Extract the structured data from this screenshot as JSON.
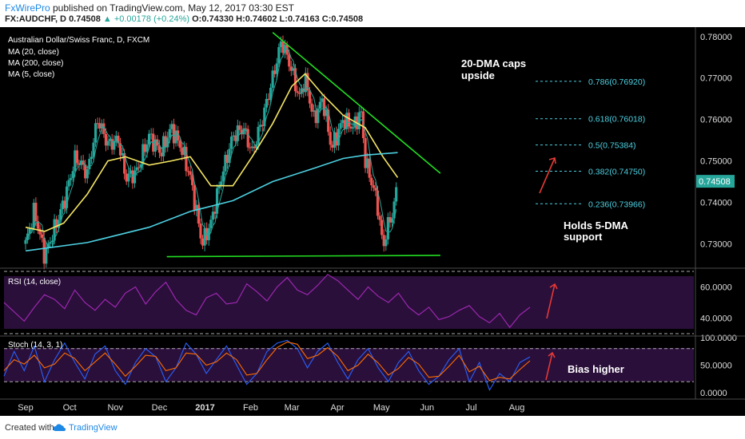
{
  "header": {
    "brand": "FxWirePro",
    "published": " published on TradingView.com, May 12, 2017 03:30 EST",
    "symbol": "FX:AUDCHF, D",
    "last": "0.74508",
    "change": "▲ +0.00178 (+0.24%)",
    "ohlc": "O:0.74330 H:0.74602 L:0.74163 C:0.74508"
  },
  "legend": {
    "title": "Australian Dollar/Swiss Franc, D, FXCM",
    "ma20": "MA (20, close)",
    "ma200": "MA (200, close)",
    "ma5": "MA (5, close)"
  },
  "annotations": {
    "caps1": "20-DMA caps",
    "caps2": "upside",
    "holds1": "Holds 5-DMA",
    "holds2": "support",
    "bias": "Bias higher"
  },
  "footer": {
    "created": "Created with",
    "tradingview": "TradingView"
  },
  "colors": {
    "price_up": "#26a69a",
    "price_down": "#ef5350",
    "ma20": "#f5e663",
    "ma200": "#4dd0e1",
    "trendline": "#22dd22",
    "fib": "#4dd0e1",
    "arrow": "#e53935",
    "rsi": "#9c27b0",
    "stoch_k": "#2962ff",
    "stoch_d": "#ff6d00",
    "osc_band": "#3a1a4d"
  },
  "chart_data": [
    {
      "type": "candlestick",
      "title": "Australian Dollar/Swiss Franc, D, FXCM",
      "ylim": [
        0.7245,
        0.7815
      ],
      "y_ticks": [
        "0.78000",
        "0.77000",
        "0.76000",
        "0.75000",
        "0.74000",
        "0.73000"
      ],
      "x_ticks": [
        "Sep",
        "Oct",
        "Nov",
        "Dec",
        "2017",
        "Feb",
        "Mar",
        "Apr",
        "May",
        "Jun",
        "Jul",
        "Aug"
      ],
      "last_price": "0.74508",
      "price_path": [
        [
          "2016-09-01",
          0.73
        ],
        [
          "2016-09-07",
          0.738
        ],
        [
          "2016-09-14",
          0.727
        ],
        [
          "2016-09-20",
          0.733
        ],
        [
          "2016-09-27",
          0.74
        ],
        [
          "2016-10-05",
          0.751
        ],
        [
          "2016-10-13",
          0.747
        ],
        [
          "2016-10-20",
          0.76
        ],
        [
          "2016-10-27",
          0.754
        ],
        [
          "2016-11-03",
          0.755
        ],
        [
          "2016-11-08",
          0.746
        ],
        [
          "2016-11-15",
          0.747
        ],
        [
          "2016-11-24",
          0.756
        ],
        [
          "2016-12-02",
          0.752
        ],
        [
          "2016-12-09",
          0.758
        ],
        [
          "2016-12-16",
          0.753
        ],
        [
          "2016-12-22",
          0.746
        ],
        [
          "2016-12-30",
          0.73
        ],
        [
          "2017-01-05",
          0.735
        ],
        [
          "2017-01-12",
          0.746
        ],
        [
          "2017-01-20",
          0.756
        ],
        [
          "2017-01-27",
          0.758
        ],
        [
          "2017-02-02",
          0.752
        ],
        [
          "2017-02-09",
          0.76
        ],
        [
          "2017-02-16",
          0.77
        ],
        [
          "2017-02-22",
          0.779
        ],
        [
          "2017-02-28",
          0.773
        ],
        [
          "2017-03-06",
          0.765
        ],
        [
          "2017-03-10",
          0.77
        ],
        [
          "2017-03-16",
          0.76
        ],
        [
          "2017-03-22",
          0.765
        ],
        [
          "2017-03-28",
          0.753
        ],
        [
          "2017-04-05",
          0.76
        ],
        [
          "2017-04-12",
          0.758
        ],
        [
          "2017-04-17",
          0.762
        ],
        [
          "2017-04-20",
          0.75
        ],
        [
          "2017-04-25",
          0.744
        ],
        [
          "2017-04-28",
          0.74
        ],
        [
          "2017-05-02",
          0.729
        ],
        [
          "2017-05-05",
          0.734
        ],
        [
          "2017-05-09",
          0.738
        ],
        [
          "2017-05-12",
          0.745
        ]
      ],
      "series": [
        {
          "name": "MA (20, close)",
          "points": [
            [
              "2016-09-01",
              0.734
            ],
            [
              "2016-09-14",
              0.733
            ],
            [
              "2016-09-27",
              0.735
            ],
            [
              "2016-10-13",
              0.742
            ],
            [
              "2016-10-27",
              0.75
            ],
            [
              "2016-11-08",
              0.751
            ],
            [
              "2016-11-24",
              0.749
            ],
            [
              "2016-12-09",
              0.75
            ],
            [
              "2016-12-22",
              0.751
            ],
            [
              "2017-01-05",
              0.744
            ],
            [
              "2017-01-20",
              0.744
            ],
            [
              "2017-02-02",
              0.751
            ],
            [
              "2017-02-16",
              0.759
            ],
            [
              "2017-03-01",
              0.768
            ],
            [
              "2017-03-10",
              0.771
            ],
            [
              "2017-03-22",
              0.766
            ],
            [
              "2017-04-05",
              0.761
            ],
            [
              "2017-04-20",
              0.758
            ],
            [
              "2017-05-02",
              0.751
            ],
            [
              "2017-05-12",
              0.746
            ]
          ]
        },
        {
          "name": "MA (200, close)",
          "points": [
            [
              "2016-09-01",
              0.7283
            ],
            [
              "2016-10-13",
              0.7303
            ],
            [
              "2016-11-24",
              0.734
            ],
            [
              "2016-12-22",
              0.7378
            ],
            [
              "2017-01-20",
              0.7404
            ],
            [
              "2017-02-16",
              0.745
            ],
            [
              "2017-03-16",
              0.7482
            ],
            [
              "2017-04-05",
              0.7506
            ],
            [
              "2017-04-20",
              0.7514
            ],
            [
              "2017-05-12",
              0.752
            ]
          ]
        },
        {
          "name": "MA (5, close)",
          "points": []
        }
      ],
      "fib_levels": [
        {
          "label": "0.786(0.76920)",
          "value": 0.7692
        },
        {
          "label": "0.618(0.76018)",
          "value": 0.76018
        },
        {
          "label": "0.5(0.75384)",
          "value": 0.75384
        },
        {
          "label": "0.382(0.74750)",
          "value": 0.7475
        },
        {
          "label": "0.236(0.73966)",
          "value": 0.73966
        }
      ],
      "trendlines": [
        {
          "name": "resistance",
          "from": [
            "2017-02-16",
            0.781
          ],
          "to": [
            "2017-06-10",
            0.747
          ]
        },
        {
          "name": "support",
          "from": [
            "2016-12-06",
            0.7269
          ],
          "to": [
            "2017-06-10",
            0.7272
          ]
        }
      ]
    },
    {
      "type": "line",
      "title": "RSI (14, close)",
      "ylim": [
        30,
        70
      ],
      "y_ticks": [
        "60.0000",
        "40.0000"
      ],
      "bands": [
        70,
        30
      ],
      "values": [
        50,
        44,
        38,
        47,
        55,
        52,
        46,
        58,
        50,
        45,
        52,
        47,
        56,
        60,
        49,
        57,
        63,
        52,
        45,
        42,
        53,
        56,
        49,
        50,
        62,
        57,
        51,
        60,
        66,
        58,
        55,
        61,
        68,
        64,
        58,
        52,
        60,
        54,
        50,
        56,
        47,
        42,
        47,
        39,
        41,
        45,
        48,
        41,
        37,
        43,
        34,
        42,
        47
      ]
    },
    {
      "type": "line",
      "title": "Stoch (14, 3, 1)",
      "ylim": [
        0,
        100
      ],
      "y_ticks": [
        "100.0000",
        "50.0000",
        "0.0000"
      ],
      "bands": [
        80,
        20
      ],
      "series": [
        {
          "name": "%K",
          "values": [
            30,
            75,
            40,
            85,
            20,
            60,
            90,
            55,
            25,
            70,
            85,
            40,
            15,
            55,
            80,
            65,
            20,
            45,
            90,
            70,
            35,
            60,
            85,
            50,
            15,
            35,
            75,
            90,
            95,
            80,
            45,
            75,
            90,
            55,
            25,
            60,
            80,
            45,
            20,
            55,
            75,
            40,
            15,
            30,
            60,
            80,
            20,
            55,
            5,
            35,
            20,
            55,
            65
          ]
        },
        {
          "name": "%D",
          "values": [
            40,
            60,
            52,
            68,
            45,
            52,
            72,
            62,
            40,
            56,
            72,
            52,
            30,
            48,
            68,
            66,
            40,
            45,
            72,
            70,
            50,
            56,
            72,
            60,
            32,
            35,
            60,
            82,
            92,
            88,
            62,
            68,
            82,
            66,
            40,
            50,
            70,
            54,
            32,
            44,
            64,
            52,
            28,
            30,
            48,
            68,
            38,
            48,
            22,
            28,
            25,
            42,
            58
          ]
        }
      ]
    }
  ]
}
